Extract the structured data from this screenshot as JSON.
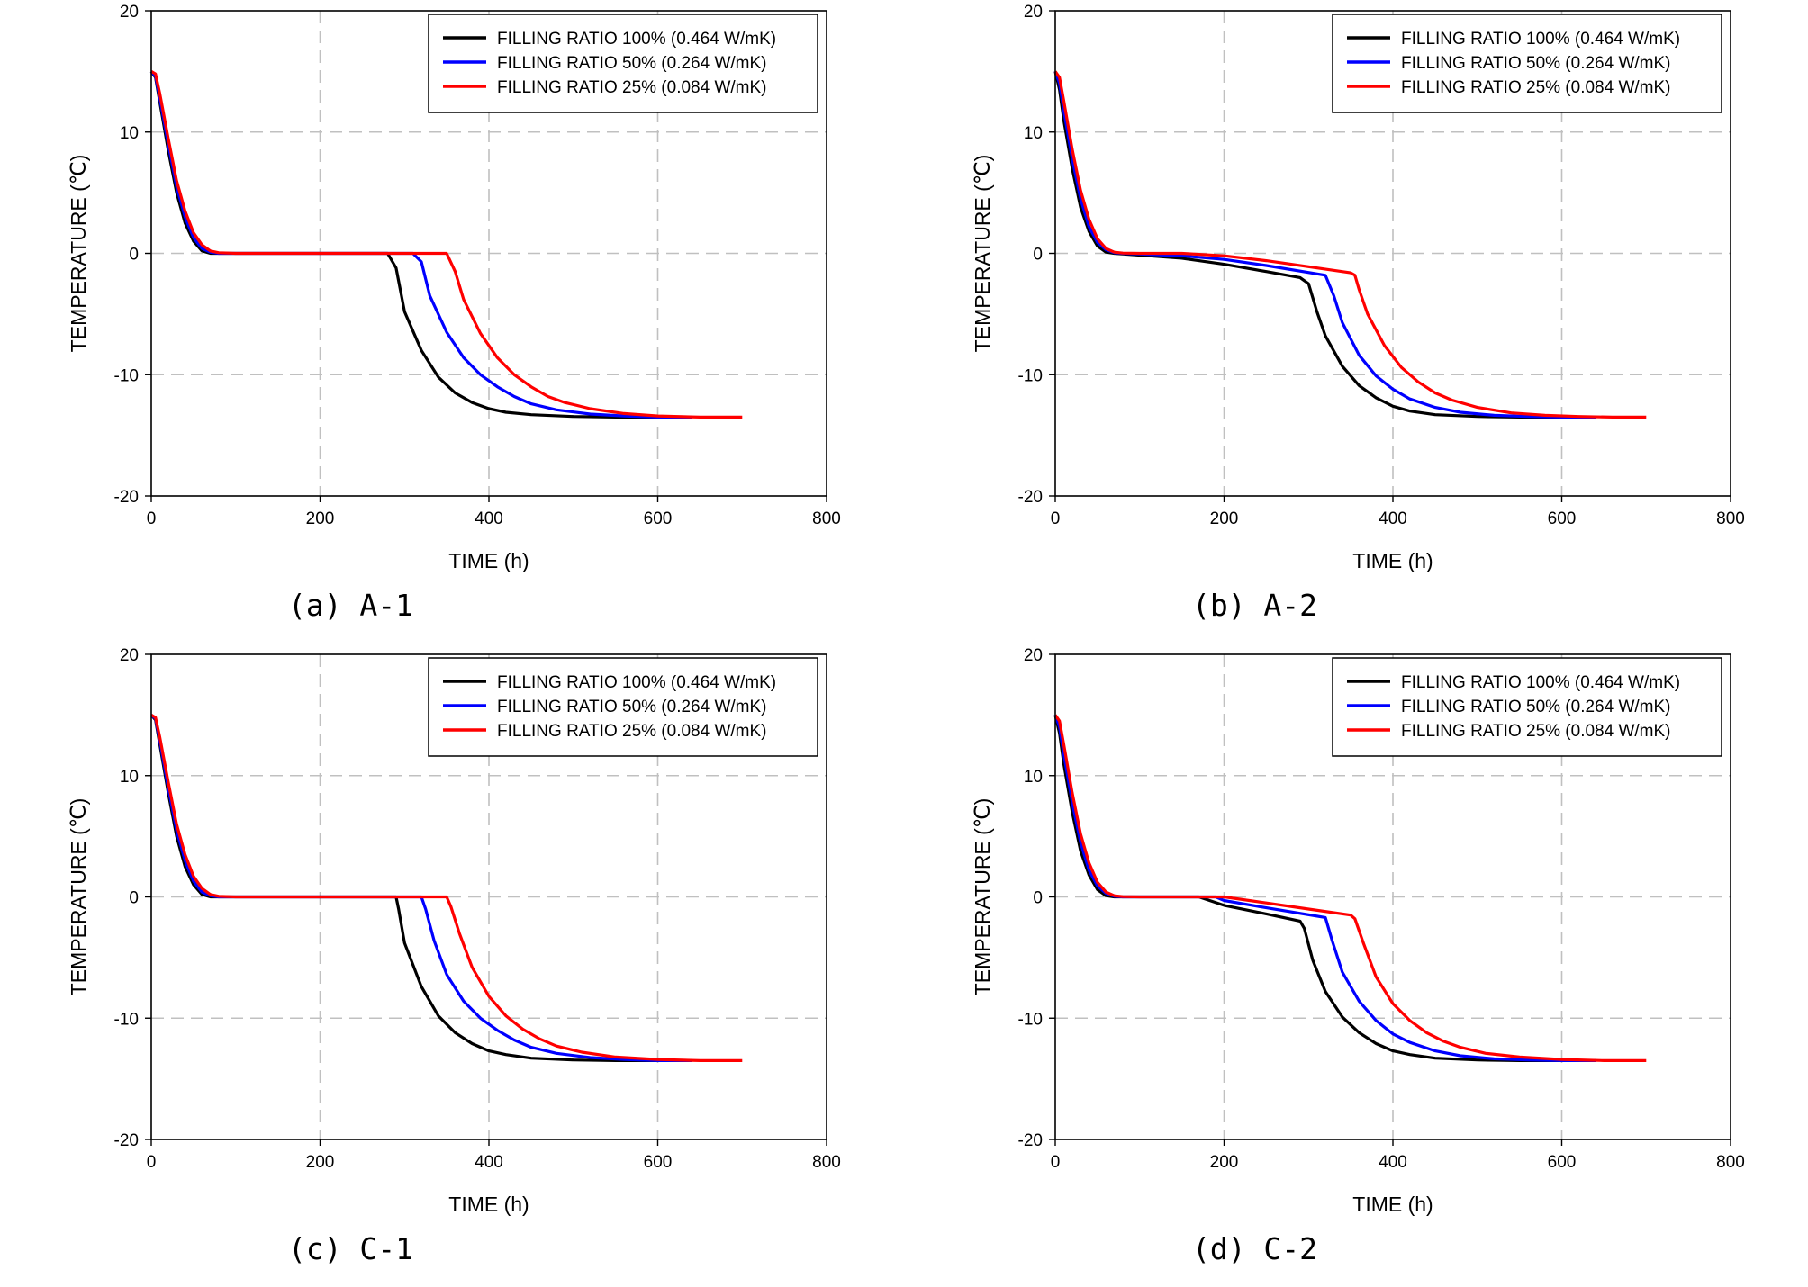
{
  "chart_data": [
    {
      "type": "line",
      "caption": "(a) A-1",
      "xlabel": "TIME (h)",
      "ylabel": "TEMPERATURE (℃)",
      "xlim": [
        0,
        800
      ],
      "ylim": [
        -20,
        20
      ],
      "xticks": [
        0,
        200,
        400,
        600,
        800
      ],
      "yticks": [
        20,
        10,
        0,
        -10,
        -20
      ],
      "grid": true,
      "legend_position": "top-right",
      "series": [
        {
          "name": "FILLING RATIO 100% (0.464 W/mK)",
          "color": "#000000",
          "x": [
            0,
            5,
            10,
            20,
            30,
            40,
            50,
            60,
            70,
            80,
            100,
            200,
            280,
            290,
            300,
            320,
            340,
            360,
            380,
            400,
            420,
            450,
            500,
            550,
            600,
            640
          ],
          "y": [
            15,
            14.5,
            12.5,
            8.5,
            5,
            2.5,
            1,
            0.2,
            0,
            0,
            0,
            0,
            0,
            -1.2,
            -4.8,
            -8,
            -10.2,
            -11.5,
            -12.3,
            -12.8,
            -13.1,
            -13.3,
            -13.45,
            -13.5,
            -13.5,
            -13.5
          ]
        },
        {
          "name": "FILLING RATIO 50% (0.264 W/mK)",
          "color": "#0000ff",
          "x": [
            0,
            5,
            10,
            20,
            30,
            40,
            50,
            60,
            70,
            80,
            100,
            200,
            310,
            320,
            330,
            350,
            370,
            390,
            410,
            430,
            450,
            480,
            520,
            560,
            600,
            640
          ],
          "y": [
            15,
            14.6,
            12.8,
            9,
            5.5,
            3,
            1.3,
            0.4,
            0.1,
            0,
            0,
            0,
            0,
            -0.7,
            -3.5,
            -6.5,
            -8.6,
            -10,
            -11,
            -11.8,
            -12.4,
            -12.9,
            -13.25,
            -13.4,
            -13.5,
            -13.5
          ]
        },
        {
          "name": "FILLING RATIO 25% (0.084 W/mK)",
          "color": "#ff0000",
          "x": [
            0,
            5,
            10,
            20,
            30,
            40,
            50,
            60,
            70,
            80,
            100,
            200,
            350,
            360,
            370,
            390,
            410,
            430,
            450,
            470,
            490,
            520,
            560,
            600,
            650,
            700
          ],
          "y": [
            15,
            14.8,
            13.2,
            9.5,
            6,
            3.5,
            1.7,
            0.7,
            0.2,
            0.05,
            0,
            0,
            0,
            -1.5,
            -3.8,
            -6.6,
            -8.6,
            -10,
            -11,
            -11.8,
            -12.3,
            -12.8,
            -13.2,
            -13.4,
            -13.5,
            -13.5
          ]
        }
      ]
    },
    {
      "type": "line",
      "caption": "(b) A-2",
      "xlabel": "TIME (h)",
      "ylabel": "TEMPERATURE (℃)",
      "xlim": [
        0,
        800
      ],
      "ylim": [
        -20,
        20
      ],
      "xticks": [
        0,
        200,
        400,
        600,
        800
      ],
      "yticks": [
        20,
        10,
        0,
        -10,
        -20
      ],
      "grid": true,
      "legend_position": "top-right",
      "series": [
        {
          "name": "FILLING RATIO 100% (0.464 W/mK)",
          "color": "#000000",
          "x": [
            0,
            5,
            10,
            20,
            30,
            40,
            50,
            60,
            70,
            80,
            100,
            150,
            200,
            250,
            290,
            300,
            310,
            320,
            340,
            360,
            380,
            400,
            420,
            450,
            500,
            550,
            600,
            640
          ],
          "y": [
            15,
            13.5,
            11,
            7,
            3.8,
            1.8,
            0.6,
            0.1,
            0,
            -0.05,
            -0.15,
            -0.4,
            -0.9,
            -1.5,
            -2,
            -2.5,
            -4.8,
            -6.8,
            -9.3,
            -10.9,
            -11.9,
            -12.6,
            -13,
            -13.3,
            -13.45,
            -13.5,
            -13.5,
            -13.5
          ]
        },
        {
          "name": "FILLING RATIO 50% (0.264 W/mK)",
          "color": "#0000ff",
          "x": [
            0,
            5,
            10,
            20,
            30,
            40,
            50,
            60,
            70,
            80,
            100,
            150,
            200,
            250,
            320,
            330,
            340,
            360,
            380,
            400,
            420,
            450,
            480,
            520,
            560,
            600,
            640
          ],
          "y": [
            15,
            14,
            11.8,
            7.8,
            4.5,
            2.2,
            0.9,
            0.3,
            0.05,
            0,
            -0.05,
            -0.2,
            -0.5,
            -1,
            -1.8,
            -3.5,
            -5.7,
            -8.4,
            -10.1,
            -11.2,
            -12,
            -12.7,
            -13.1,
            -13.35,
            -13.45,
            -13.5,
            -13.5
          ]
        },
        {
          "name": "FILLING RATIO 25% (0.084 W/mK)",
          "color": "#ff0000",
          "x": [
            0,
            5,
            10,
            20,
            30,
            40,
            50,
            60,
            70,
            80,
            100,
            150,
            200,
            250,
            300,
            350,
            355,
            360,
            370,
            390,
            410,
            430,
            450,
            470,
            500,
            540,
            580,
            620,
            660,
            700
          ],
          "y": [
            15,
            14.5,
            12.6,
            8.6,
            5.2,
            2.8,
            1.2,
            0.4,
            0.1,
            0.02,
            0,
            0,
            -0.2,
            -0.6,
            -1.1,
            -1.6,
            -1.8,
            -3,
            -5,
            -7.6,
            -9.4,
            -10.6,
            -11.5,
            -12.1,
            -12.7,
            -13.15,
            -13.35,
            -13.45,
            -13.5,
            -13.5
          ]
        }
      ]
    },
    {
      "type": "line",
      "caption": "(c) C-1",
      "xlabel": "TIME (h)",
      "ylabel": "TEMPERATURE (℃)",
      "xlim": [
        0,
        800
      ],
      "ylim": [
        -20,
        20
      ],
      "xticks": [
        0,
        200,
        400,
        600,
        800
      ],
      "yticks": [
        20,
        10,
        0,
        -10,
        -20
      ],
      "grid": true,
      "legend_position": "top-right",
      "series": [
        {
          "name": "FILLING RATIO 100% (0.464 W/mK)",
          "color": "#000000",
          "x": [
            0,
            5,
            10,
            20,
            30,
            40,
            50,
            60,
            70,
            80,
            100,
            200,
            290,
            293,
            300,
            320,
            340,
            360,
            380,
            400,
            420,
            450,
            500,
            550,
            600,
            640
          ],
          "y": [
            15,
            14.6,
            12.6,
            8.6,
            5,
            2.5,
            1,
            0.2,
            0,
            0,
            0,
            0,
            0,
            -1,
            -3.8,
            -7.4,
            -9.8,
            -11.2,
            -12.1,
            -12.7,
            -13,
            -13.3,
            -13.45,
            -13.5,
            -13.5,
            -13.5
          ]
        },
        {
          "name": "FILLING RATIO 50% (0.264 W/mK)",
          "color": "#0000ff",
          "x": [
            0,
            5,
            10,
            20,
            30,
            40,
            50,
            60,
            70,
            80,
            100,
            200,
            320,
            325,
            335,
            350,
            370,
            390,
            410,
            430,
            450,
            480,
            520,
            560,
            600,
            640
          ],
          "y": [
            15,
            14.7,
            12.9,
            9,
            5.5,
            3,
            1.3,
            0.4,
            0.1,
            0,
            0,
            0,
            0,
            -1,
            -3.6,
            -6.4,
            -8.6,
            -10,
            -11,
            -11.8,
            -12.4,
            -12.9,
            -13.25,
            -13.4,
            -13.5,
            -13.5
          ]
        },
        {
          "name": "FILLING RATIO 25% (0.084 W/mK)",
          "color": "#ff0000",
          "x": [
            0,
            5,
            10,
            20,
            30,
            40,
            50,
            60,
            70,
            80,
            100,
            200,
            350,
            355,
            365,
            380,
            400,
            420,
            440,
            460,
            480,
            510,
            550,
            600,
            650,
            700
          ],
          "y": [
            15,
            14.8,
            13.2,
            9.5,
            6,
            3.5,
            1.7,
            0.7,
            0.2,
            0.05,
            0,
            0,
            0,
            -0.8,
            -3,
            -5.8,
            -8.2,
            -9.8,
            -10.9,
            -11.7,
            -12.3,
            -12.8,
            -13.2,
            -13.4,
            -13.5,
            -13.5
          ]
        }
      ]
    },
    {
      "type": "line",
      "caption": "(d) C-2",
      "xlabel": "TIME (h)",
      "ylabel": "TEMPERATURE (℃)",
      "xlim": [
        0,
        800
      ],
      "ylim": [
        -20,
        20
      ],
      "xticks": [
        0,
        200,
        400,
        600,
        800
      ],
      "yticks": [
        20,
        10,
        0,
        -10,
        -20
      ],
      "grid": true,
      "legend_position": "top-right",
      "series": [
        {
          "name": "FILLING RATIO 100% (0.464 W/mK)",
          "color": "#000000",
          "x": [
            0,
            5,
            10,
            20,
            30,
            40,
            50,
            60,
            70,
            80,
            100,
            170,
            200,
            250,
            290,
            295,
            305,
            320,
            340,
            360,
            380,
            400,
            420,
            450,
            500,
            550,
            600,
            640
          ],
          "y": [
            15,
            13.5,
            11,
            7,
            3.8,
            1.8,
            0.6,
            0.1,
            0,
            0,
            0,
            0,
            -0.7,
            -1.4,
            -2,
            -2.6,
            -5.2,
            -7.8,
            -9.9,
            -11.2,
            -12.1,
            -12.7,
            -13,
            -13.3,
            -13.45,
            -13.5,
            -13.5,
            -13.5
          ]
        },
        {
          "name": "FILLING RATIO 50% (0.264 W/mK)",
          "color": "#0000ff",
          "x": [
            0,
            5,
            10,
            20,
            30,
            40,
            50,
            60,
            70,
            80,
            100,
            190,
            200,
            250,
            320,
            328,
            340,
            360,
            380,
            400,
            420,
            450,
            480,
            520,
            560,
            600,
            640
          ],
          "y": [
            15,
            14,
            11.8,
            7.8,
            4.5,
            2.2,
            0.9,
            0.3,
            0.05,
            0,
            0,
            0,
            -0.3,
            -0.9,
            -1.7,
            -3.6,
            -6.2,
            -8.6,
            -10.2,
            -11.3,
            -12,
            -12.7,
            -13.1,
            -13.35,
            -13.45,
            -13.5,
            -13.5
          ]
        },
        {
          "name": "FILLING RATIO 25% (0.084 W/mK)",
          "color": "#ff0000",
          "x": [
            0,
            5,
            10,
            20,
            30,
            40,
            50,
            60,
            70,
            80,
            100,
            200,
            250,
            300,
            350,
            355,
            365,
            380,
            400,
            420,
            440,
            460,
            480,
            510,
            550,
            600,
            650,
            700
          ],
          "y": [
            15,
            14.5,
            12.6,
            8.6,
            5.2,
            2.8,
            1.2,
            0.4,
            0.1,
            0.02,
            0,
            0,
            -0.5,
            -1,
            -1.5,
            -1.8,
            -3.8,
            -6.6,
            -8.8,
            -10.2,
            -11.2,
            -11.9,
            -12.4,
            -12.9,
            -13.2,
            -13.4,
            -13.5,
            -13.5
          ]
        }
      ]
    }
  ]
}
